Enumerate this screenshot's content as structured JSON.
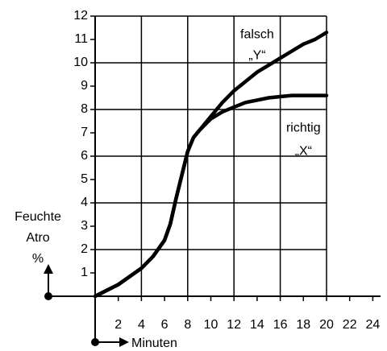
{
  "chart_data": {
    "type": "line",
    "x_label": "Minuten",
    "y_label": [
      "Feuchte",
      "Atro",
      "%"
    ],
    "annotations": [
      {
        "text": "falsch",
        "x": 14,
        "y": 11.2
      },
      {
        "text": "„Y“",
        "x": 14,
        "y": 10.3
      },
      {
        "text": "richtig",
        "x": 18,
        "y": 7.2
      },
      {
        "text": "„X“",
        "x": 18,
        "y": 6.2
      }
    ],
    "xlim": [
      0,
      24
    ],
    "xticks": [
      2,
      4,
      6,
      8,
      10,
      12,
      14,
      16,
      18,
      20,
      22,
      24
    ],
    "ylim": [
      0,
      12
    ],
    "yticks": [
      1,
      2,
      3,
      4,
      5,
      6,
      7,
      8,
      9,
      10,
      11,
      12
    ],
    "grid_x": [
      4,
      8,
      12,
      16,
      20
    ],
    "grid_y": [
      2,
      4,
      6,
      8,
      10,
      12
    ],
    "series": [
      {
        "name": "falsch „Y“",
        "color": "#000000",
        "x": [
          0,
          2,
          4,
          5,
          6,
          6.5,
          7,
          7.5,
          8,
          8.5,
          9,
          10,
          11,
          12,
          13,
          14,
          15,
          16,
          17,
          18,
          19,
          20
        ],
        "values": [
          0,
          0.5,
          1.2,
          1.7,
          2.4,
          3.1,
          4.2,
          5.2,
          6.2,
          6.8,
          7.1,
          7.7,
          8.3,
          8.8,
          9.2,
          9.6,
          9.9,
          10.2,
          10.5,
          10.8,
          11.0,
          11.3
        ]
      },
      {
        "name": "richtig „X“",
        "color": "#000000",
        "x": [
          0,
          2,
          4,
          5,
          6,
          6.5,
          7,
          7.5,
          8,
          8.5,
          9,
          10,
          11,
          12,
          13,
          14,
          15,
          16,
          17,
          18,
          19,
          20
        ],
        "values": [
          0,
          0.5,
          1.2,
          1.7,
          2.4,
          3.1,
          4.2,
          5.2,
          6.2,
          6.8,
          7.1,
          7.6,
          7.9,
          8.1,
          8.3,
          8.4,
          8.5,
          8.55,
          8.6,
          8.6,
          8.6,
          8.6
        ]
      }
    ]
  }
}
